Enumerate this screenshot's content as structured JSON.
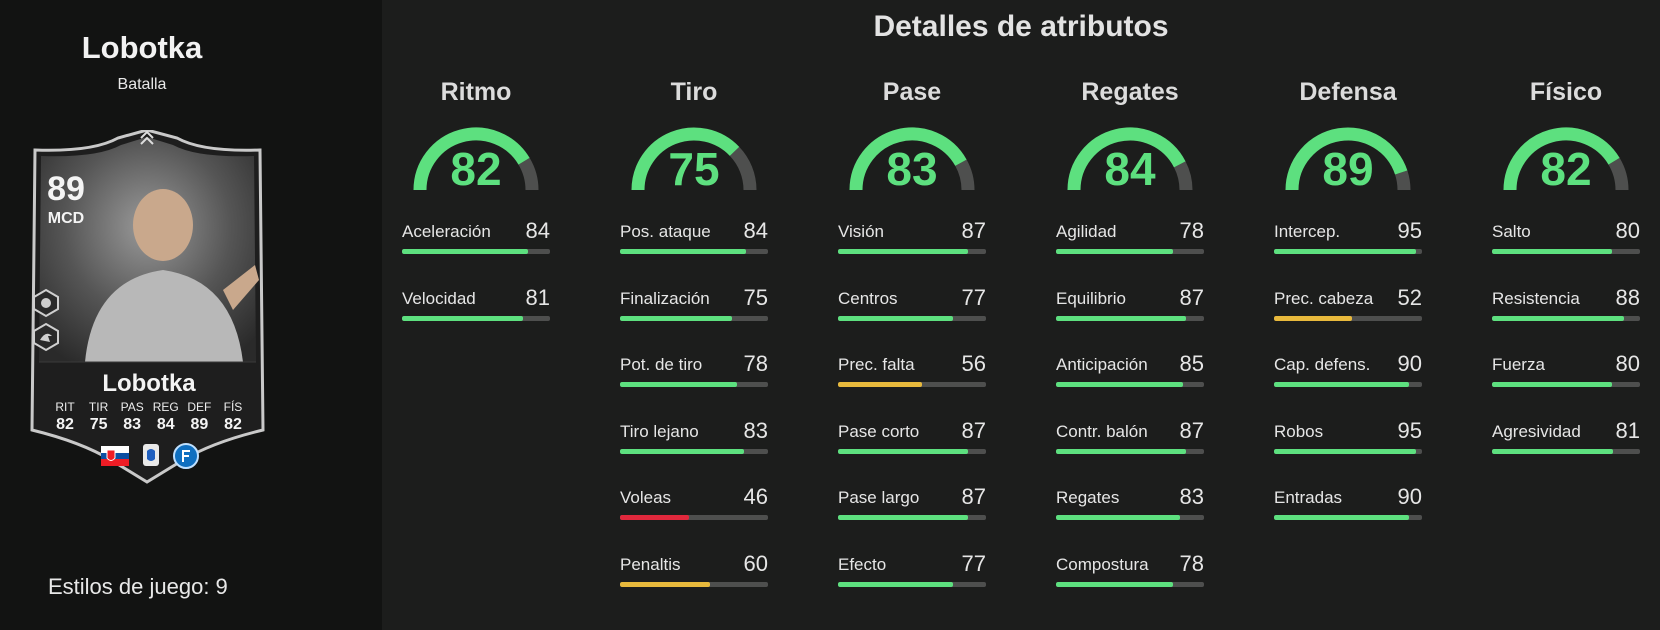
{
  "player": {
    "name": "Lobotka",
    "version": "Batalla",
    "rating": "89",
    "position": "MCD",
    "card_name": "Lobotka",
    "card_stats": [
      {
        "label": "RIT",
        "value": "82"
      },
      {
        "label": "TIR",
        "value": "75"
      },
      {
        "label": "PAS",
        "value": "83"
      },
      {
        "label": "REG",
        "value": "84"
      },
      {
        "label": "DEF",
        "value": "89"
      },
      {
        "label": "FÍS",
        "value": "82"
      }
    ],
    "playstyles_label": "Estilos de juego: 9"
  },
  "page": {
    "title": "Detalles de atributos"
  },
  "colors": {
    "green": "#5de07f",
    "yellow": "#e8b93c",
    "red": "#e0283c",
    "track": "#4e4f4e"
  },
  "categories": [
    {
      "name": "Ritmo",
      "value": 82,
      "attributes": [
        {
          "name": "Aceleración",
          "value": 84
        },
        {
          "name": "Velocidad",
          "value": 81
        }
      ]
    },
    {
      "name": "Tiro",
      "value": 75,
      "attributes": [
        {
          "name": "Pos. ataque",
          "value": 84
        },
        {
          "name": "Finalización",
          "value": 75
        },
        {
          "name": "Pot. de tiro",
          "value": 78
        },
        {
          "name": "Tiro lejano",
          "value": 83
        },
        {
          "name": "Voleas",
          "value": 46
        },
        {
          "name": "Penaltis",
          "value": 60
        }
      ]
    },
    {
      "name": "Pase",
      "value": 83,
      "attributes": [
        {
          "name": "Visión",
          "value": 87
        },
        {
          "name": "Centros",
          "value": 77
        },
        {
          "name": "Prec. falta",
          "value": 56
        },
        {
          "name": "Pase corto",
          "value": 87
        },
        {
          "name": "Pase largo",
          "value": 87
        },
        {
          "name": "Efecto",
          "value": 77
        }
      ]
    },
    {
      "name": "Regates",
      "value": 84,
      "attributes": [
        {
          "name": "Agilidad",
          "value": 78
        },
        {
          "name": "Equilibrio",
          "value": 87
        },
        {
          "name": "Anticipación",
          "value": 85
        },
        {
          "name": "Contr. balón",
          "value": 87
        },
        {
          "name": "Regates",
          "value": 83
        },
        {
          "name": "Compostura",
          "value": 78
        }
      ]
    },
    {
      "name": "Defensa",
      "value": 89,
      "attributes": [
        {
          "name": "Intercep.",
          "value": 95
        },
        {
          "name": "Prec. cabeza",
          "value": 52
        },
        {
          "name": "Cap. defens.",
          "value": 90
        },
        {
          "name": "Robos",
          "value": 95
        },
        {
          "name": "Entradas",
          "value": 90
        }
      ]
    },
    {
      "name": "Físico",
      "value": 82,
      "attributes": [
        {
          "name": "Salto",
          "value": 80
        },
        {
          "name": "Resistencia",
          "value": 88
        },
        {
          "name": "Fuerza",
          "value": 80
        },
        {
          "name": "Agresividad",
          "value": 81
        }
      ]
    }
  ]
}
